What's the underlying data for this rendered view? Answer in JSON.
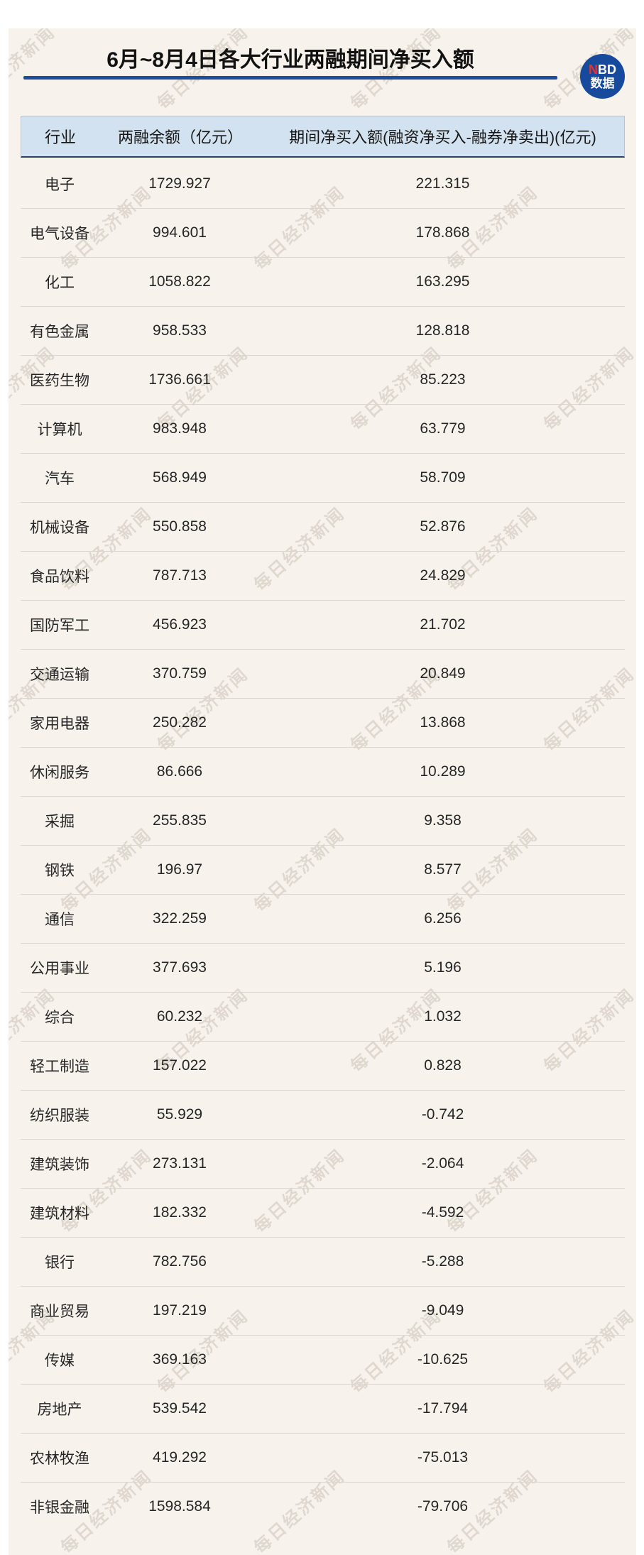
{
  "page": {
    "background": "#ffffff",
    "card_background": "#f7f3ec",
    "accent_navy": "#1d4e9e",
    "header_fill": "#d3e2f0",
    "header_border_bottom": "#2e4163",
    "row_divider": "#dbd6ce"
  },
  "header": {
    "title": "6月~8月4日各大行业两融期间净买入额"
  },
  "logo": {
    "n": "N",
    "bd": "BD",
    "subtitle": "数据",
    "circle_color": "#17499c",
    "n_color": "#e5332c"
  },
  "watermark": {
    "text": "每日经济新闻"
  },
  "table": {
    "columns": [
      "行业",
      "两融余额（亿元）",
      "期间净买入额(融资净买入-融券净卖出)(亿元)"
    ],
    "rows": [
      {
        "industry": "电子",
        "balance": "1729.927",
        "net": "221.315"
      },
      {
        "industry": "电气设备",
        "balance": "994.601",
        "net": "178.868"
      },
      {
        "industry": "化工",
        "balance": "1058.822",
        "net": "163.295"
      },
      {
        "industry": "有色金属",
        "balance": "958.533",
        "net": "128.818"
      },
      {
        "industry": "医药生物",
        "balance": "1736.661",
        "net": "85.223"
      },
      {
        "industry": "计算机",
        "balance": "983.948",
        "net": "63.779"
      },
      {
        "industry": "汽车",
        "balance": "568.949",
        "net": "58.709"
      },
      {
        "industry": "机械设备",
        "balance": "550.858",
        "net": "52.876"
      },
      {
        "industry": "食品饮料",
        "balance": "787.713",
        "net": "24.829"
      },
      {
        "industry": "国防军工",
        "balance": "456.923",
        "net": "21.702"
      },
      {
        "industry": "交通运输",
        "balance": "370.759",
        "net": "20.849"
      },
      {
        "industry": "家用电器",
        "balance": "250.282",
        "net": "13.868"
      },
      {
        "industry": "休闲服务",
        "balance": "86.666",
        "net": "10.289"
      },
      {
        "industry": "采掘",
        "balance": "255.835",
        "net": "9.358"
      },
      {
        "industry": "钢铁",
        "balance": "196.97",
        "net": "8.577"
      },
      {
        "industry": "通信",
        "balance": "322.259",
        "net": "6.256"
      },
      {
        "industry": "公用事业",
        "balance": "377.693",
        "net": "5.196"
      },
      {
        "industry": "综合",
        "balance": "60.232",
        "net": "1.032"
      },
      {
        "industry": "轻工制造",
        "balance": "157.022",
        "net": "0.828"
      },
      {
        "industry": "纺织服装",
        "balance": "55.929",
        "net": "-0.742"
      },
      {
        "industry": "建筑装饰",
        "balance": "273.131",
        "net": "-2.064"
      },
      {
        "industry": "建筑材料",
        "balance": "182.332",
        "net": "-4.592"
      },
      {
        "industry": "银行",
        "balance": "782.756",
        "net": "-5.288"
      },
      {
        "industry": "商业贸易",
        "balance": "197.219",
        "net": "-9.049"
      },
      {
        "industry": "传媒",
        "balance": "369.163",
        "net": "-10.625"
      },
      {
        "industry": "房地产",
        "balance": "539.542",
        "net": "-17.794"
      },
      {
        "industry": "农林牧渔",
        "balance": "419.292",
        "net": "-75.013"
      },
      {
        "industry": "非银金融",
        "balance": "1598.584",
        "net": "-79.706"
      }
    ]
  },
  "chart_data": {
    "type": "table",
    "title": "6月~8月4日各大行业两融期间净买入额",
    "columns": [
      "行业",
      "两融余额（亿元）",
      "期间净买入额(融资净买入-融券净卖出)(亿元)"
    ],
    "categories": [
      "电子",
      "电气设备",
      "化工",
      "有色金属",
      "医药生物",
      "计算机",
      "汽车",
      "机械设备",
      "食品饮料",
      "国防军工",
      "交通运输",
      "家用电器",
      "休闲服务",
      "采掘",
      "钢铁",
      "通信",
      "公用事业",
      "综合",
      "轻工制造",
      "纺织服装",
      "建筑装饰",
      "建筑材料",
      "银行",
      "商业贸易",
      "传媒",
      "房地产",
      "农林牧渔",
      "非银金融"
    ],
    "series": [
      {
        "name": "两融余额（亿元）",
        "values": [
          1729.927,
          994.601,
          1058.822,
          958.533,
          1736.661,
          983.948,
          568.949,
          550.858,
          787.713,
          456.923,
          370.759,
          250.282,
          86.666,
          255.835,
          196.97,
          322.259,
          377.693,
          60.232,
          157.022,
          55.929,
          273.131,
          182.332,
          782.756,
          197.219,
          369.163,
          539.542,
          419.292,
          1598.584
        ]
      },
      {
        "name": "期间净买入额(融资净买入-融券净卖出)(亿元)",
        "values": [
          221.315,
          178.868,
          163.295,
          128.818,
          85.223,
          63.779,
          58.709,
          52.876,
          24.829,
          21.702,
          20.849,
          13.868,
          10.289,
          9.358,
          8.577,
          6.256,
          5.196,
          1.032,
          0.828,
          -0.742,
          -2.064,
          -4.592,
          -5.288,
          -9.049,
          -10.625,
          -17.794,
          -75.013,
          -79.706
        ]
      }
    ]
  }
}
